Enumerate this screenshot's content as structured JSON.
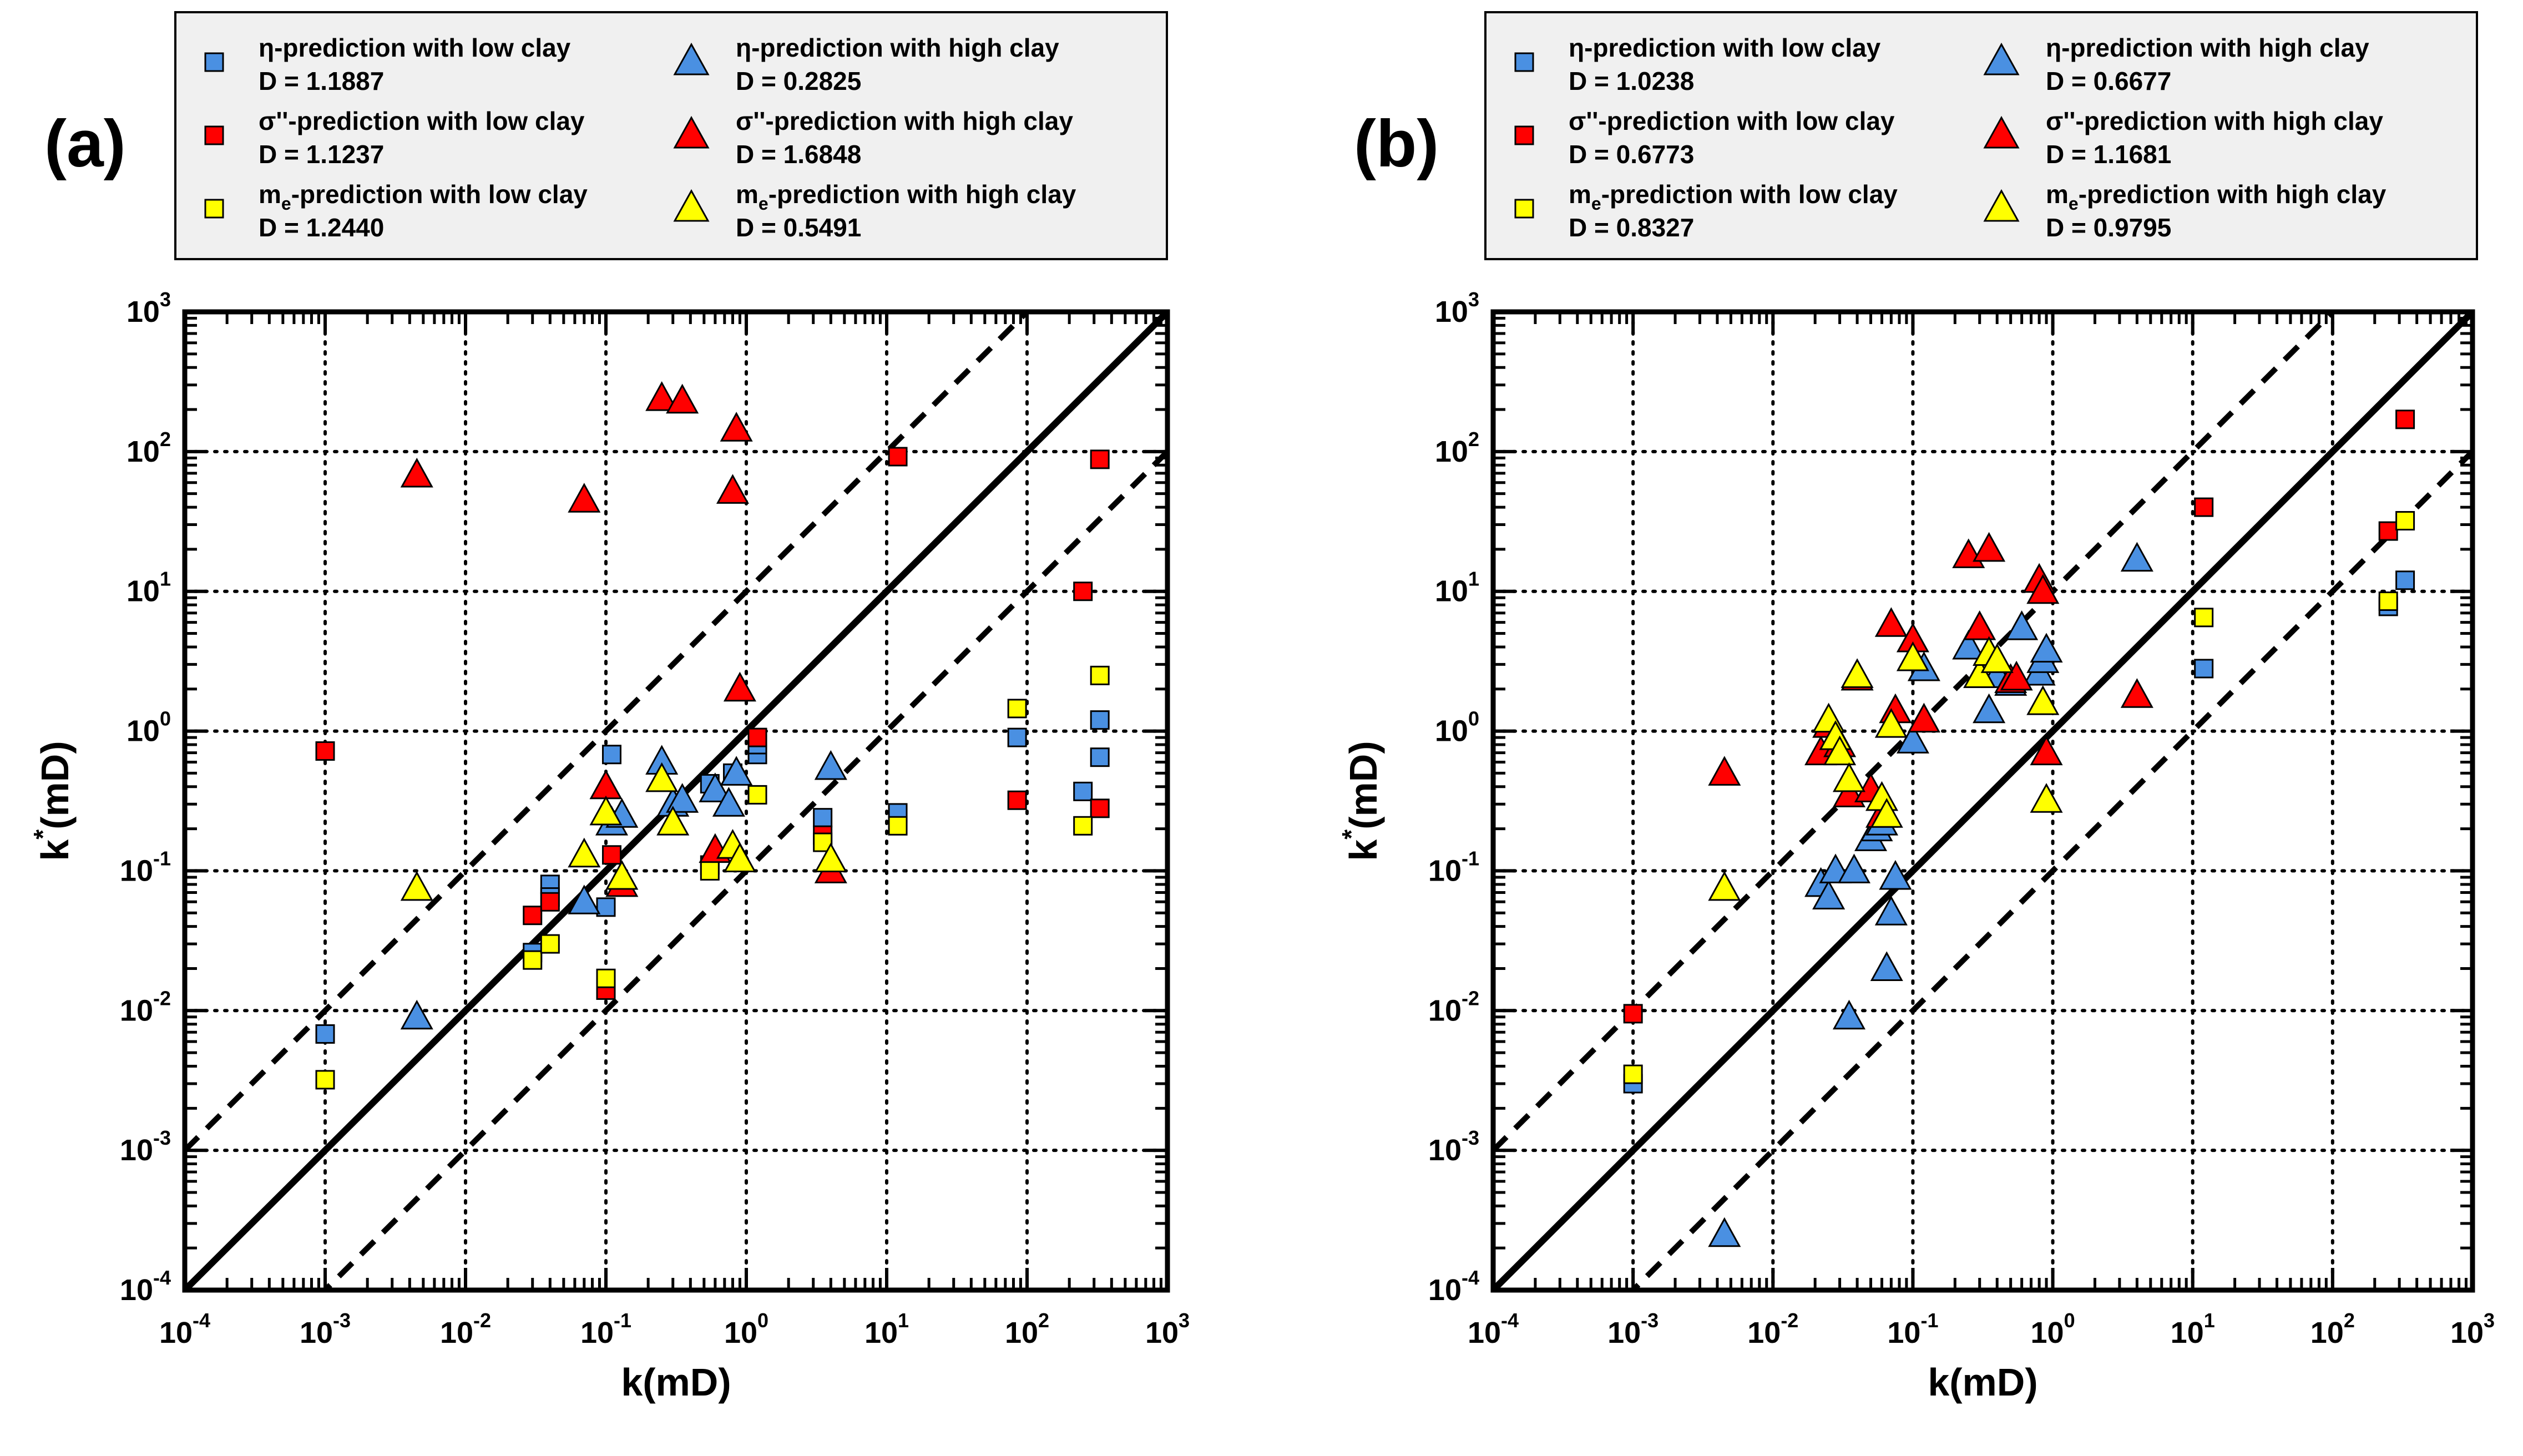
{
  "colors": {
    "blue": "#4a90e2",
    "red": "#ff0000",
    "yellow": "#ffff00",
    "axis": "#000000",
    "legend_bg": "#f0f0f0"
  },
  "chart_data": [
    {
      "type": "scatter",
      "panel_label": "(a)",
      "xlabel": "k(mD)",
      "ylabel_base": "k",
      "ylabel_sup": "*",
      "ylabel_rest": "(mD)",
      "xscale": "log",
      "yscale": "log",
      "xlim": [
        0.0001,
        1000
      ],
      "ylim": [
        0.0001,
        1000
      ],
      "grid": true,
      "legend_position": "top",
      "tick_labels": [
        {
          "base": "10",
          "exp": "-4"
        },
        {
          "base": "10",
          "exp": "-3"
        },
        {
          "base": "10",
          "exp": "-2"
        },
        {
          "base": "10",
          "exp": "-1"
        },
        {
          "base": "10",
          "exp": "0"
        },
        {
          "base": "10",
          "exp": "1"
        },
        {
          "base": "10",
          "exp": "2"
        },
        {
          "base": "10",
          "exp": "3"
        }
      ],
      "reference_lines": [
        {
          "name": "1:1 line",
          "style": "solid",
          "factor": 1
        },
        {
          "name": "upper bound",
          "style": "dashed",
          "factor": 10
        },
        {
          "name": "lower bound",
          "style": "dashed",
          "factor": 0.1
        }
      ],
      "series": [
        {
          "name_pre": "η-prediction with low clay",
          "name_sub": "",
          "name_post": "",
          "d_label": "D = 1.1887",
          "marker": "square",
          "color": "blue",
          "x": [
            0.001,
            0.03,
            0.04,
            0.04,
            0.1,
            0.11,
            0.11,
            0.55,
            0.8,
            1.2,
            1.2,
            3.5,
            12,
            85,
            250,
            330,
            330
          ],
          "y": [
            0.0068,
            0.026,
            0.08,
            0.065,
            0.055,
            0.68,
            0.23,
            0.42,
            0.5,
            0.68,
            0.8,
            0.24,
            0.26,
            0.9,
            0.37,
            1.2,
            0.65
          ]
        },
        {
          "name_pre": "σ''-prediction with low clay",
          "name_sub": "",
          "name_post": "",
          "d_label": "D = 1.1237",
          "marker": "square",
          "color": "red",
          "x": [
            0.001,
            0.03,
            0.04,
            0.1,
            0.11,
            0.55,
            1.2,
            3.5,
            12,
            85,
            250,
            330,
            330
          ],
          "y": [
            0.72,
            0.048,
            0.06,
            0.014,
            0.13,
            0.11,
            0.9,
            0.18,
            92,
            0.32,
            10,
            88,
            0.28
          ]
        },
        {
          "name_pre": "m",
          "name_sub": "e",
          "name_post": "-prediction with low clay",
          "d_label": "D = 1.2440",
          "marker": "square",
          "color": "yellow",
          "x": [
            0.001,
            0.03,
            0.04,
            0.1,
            0.55,
            1.2,
            3.5,
            12,
            85,
            250,
            330
          ],
          "y": [
            0.0032,
            0.023,
            0.03,
            0.017,
            0.1,
            0.35,
            0.16,
            0.21,
            1.45,
            0.21,
            2.5
          ]
        },
        {
          "name_pre": "η-prediction with high clay",
          "name_sub": "",
          "name_post": "",
          "d_label": "D = 0.2825",
          "marker": "triangle",
          "color": "blue",
          "x": [
            0.0045,
            0.07,
            0.11,
            0.13,
            0.25,
            0.3,
            0.35,
            0.6,
            0.75,
            0.85,
            4
          ],
          "y": [
            0.009,
            0.06,
            0.22,
            0.25,
            0.6,
            0.3,
            0.32,
            0.38,
            0.3,
            0.5,
            0.55
          ]
        },
        {
          "name_pre": "σ''-prediction with high clay",
          "name_sub": "",
          "name_post": "",
          "d_label": "D = 1.6848",
          "marker": "triangle",
          "color": "red",
          "x": [
            0.0045,
            0.07,
            0.1,
            0.13,
            0.25,
            0.35,
            0.6,
            0.8,
            0.85,
            0.9,
            4
          ],
          "y": [
            68,
            45,
            0.4,
            0.08,
            240,
            230,
            0.14,
            52,
            145,
            2,
            0.1
          ]
        },
        {
          "name_pre": "m",
          "name_sub": "e",
          "name_post": "-prediction with high clay",
          "d_label": "D = 0.5491",
          "marker": "triangle",
          "color": "yellow",
          "x": [
            0.0045,
            0.07,
            0.1,
            0.13,
            0.25,
            0.3,
            0.8,
            0.9,
            4
          ],
          "y": [
            0.075,
            0.13,
            0.26,
            0.09,
            0.45,
            0.22,
            0.15,
            0.12,
            0.12
          ]
        }
      ]
    },
    {
      "type": "scatter",
      "panel_label": "(b)",
      "xlabel": "k(mD)",
      "ylabel_base": "k",
      "ylabel_sup": "*",
      "ylabel_rest": "(mD)",
      "xscale": "log",
      "yscale": "log",
      "xlim": [
        0.0001,
        1000
      ],
      "ylim": [
        0.0001,
        1000
      ],
      "grid": true,
      "legend_position": "top",
      "tick_labels": [
        {
          "base": "10",
          "exp": "-4"
        },
        {
          "base": "10",
          "exp": "-3"
        },
        {
          "base": "10",
          "exp": "-2"
        },
        {
          "base": "10",
          "exp": "-1"
        },
        {
          "base": "10",
          "exp": "0"
        },
        {
          "base": "10",
          "exp": "1"
        },
        {
          "base": "10",
          "exp": "2"
        },
        {
          "base": "10",
          "exp": "3"
        }
      ],
      "reference_lines": [
        {
          "name": "1:1 line",
          "style": "solid",
          "factor": 1
        },
        {
          "name": "upper bound",
          "style": "dashed",
          "factor": 10
        },
        {
          "name": "lower bound",
          "style": "dashed",
          "factor": 0.1
        }
      ],
      "series": [
        {
          "name_pre": "η-prediction with low clay",
          "name_sub": "",
          "name_post": "",
          "d_label": "D = 1.0238",
          "marker": "square",
          "color": "blue",
          "x": [
            0.001,
            12,
            250,
            330
          ],
          "y": [
            0.003,
            2.8,
            7.8,
            12
          ]
        },
        {
          "name_pre": "σ''-prediction with low clay",
          "name_sub": "",
          "name_post": "",
          "d_label": "D = 0.6773",
          "marker": "square",
          "color": "red",
          "x": [
            0.001,
            12,
            250,
            330
          ],
          "y": [
            0.0095,
            40,
            27,
            170
          ]
        },
        {
          "name_pre": "m",
          "name_sub": "e",
          "name_post": "-prediction with low clay",
          "d_label": "D = 0.8327",
          "marker": "square",
          "color": "yellow",
          "x": [
            0.001,
            12,
            250,
            330
          ],
          "y": [
            0.0035,
            6.5,
            8.5,
            32
          ]
        },
        {
          "name_pre": "η-prediction with high clay",
          "name_sub": "",
          "name_post": "",
          "d_label": "D = 0.6677",
          "marker": "triangle",
          "color": "blue",
          "x": [
            0.0045,
            0.022,
            0.025,
            0.028,
            0.035,
            0.038,
            0.05,
            0.055,
            0.06,
            0.065,
            0.07,
            0.075,
            0.1,
            0.12,
            0.25,
            0.3,
            0.35,
            0.4,
            0.5,
            0.6,
            0.8,
            0.85,
            0.9,
            4
          ],
          "y": [
            0.00025,
            0.08,
            0.065,
            0.1,
            0.009,
            0.1,
            0.17,
            0.2,
            0.22,
            0.02,
            0.05,
            0.09,
            0.85,
            2.8,
            4,
            2.5,
            1.4,
            2.5,
            2.2,
            5.5,
            2.6,
            3.2,
            3.8,
            17
          ]
        },
        {
          "name_pre": "σ''-prediction with high clay",
          "name_sub": "",
          "name_post": "",
          "d_label": "D = 1.1681",
          "marker": "triangle",
          "color": "red",
          "x": [
            0.0045,
            0.022,
            0.025,
            0.03,
            0.035,
            0.04,
            0.05,
            0.06,
            0.07,
            0.075,
            0.1,
            0.12,
            0.25,
            0.3,
            0.35,
            0.5,
            0.55,
            0.8,
            0.85,
            0.9,
            4
          ],
          "y": [
            0.5,
            0.7,
            1.1,
            0.8,
            0.35,
            2.4,
            0.38,
            0.25,
            5.8,
            1.4,
            4.5,
            1.2,
            18,
            5.5,
            20,
            2.3,
            2.4,
            12,
            10,
            0.7,
            1.8
          ]
        },
        {
          "name_pre": "m",
          "name_sub": "e",
          "name_post": "-prediction with high clay",
          "d_label": "D = 0.9795",
          "marker": "triangle",
          "color": "yellow",
          "x": [
            0.0045,
            0.025,
            0.028,
            0.03,
            0.035,
            0.04,
            0.06,
            0.065,
            0.07,
            0.1,
            0.3,
            0.35,
            0.4,
            0.85,
            0.9
          ],
          "y": [
            0.075,
            1.2,
            0.9,
            0.7,
            0.45,
            2.5,
            0.33,
            0.25,
            1.1,
            3.3,
            2.5,
            3.6,
            3.2,
            1.6,
            0.32
          ]
        }
      ]
    }
  ]
}
